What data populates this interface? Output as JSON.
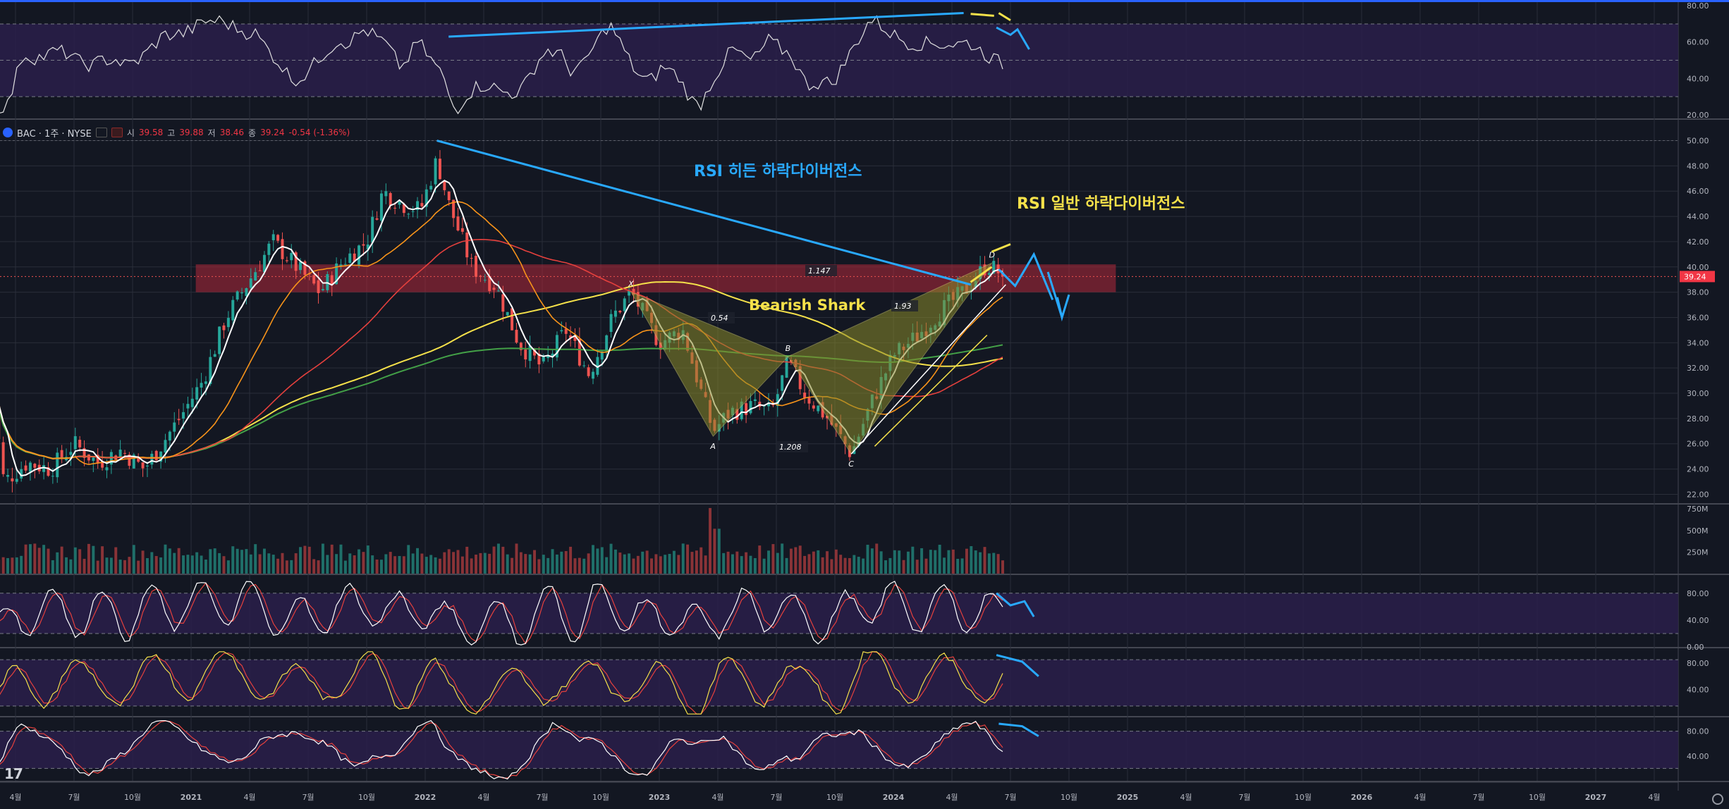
{
  "symbol_bar": {
    "symbol": "BAC · 1주 · NYSE",
    "open_label": "시",
    "open": "39.58",
    "high_label": "고",
    "high": "39.88",
    "low_label": "저",
    "low": "38.46",
    "close_label": "종",
    "close": "39.24",
    "change": "-0.54 (-1.36%)"
  },
  "last_price_tag": "39.24",
  "colors": {
    "background": "#131722",
    "bull": "#26a69a",
    "bear": "#ef5350",
    "rsi_band": "#2a1e4a",
    "ma_white": "#ffffff",
    "ma_orange": "#f7931a",
    "ma_red": "#e5403d",
    "ma_yellow": "#f5e14a",
    "ma_green": "#43a047",
    "annotation_blue": "#29a9ff",
    "annotation_yellow": "#f5e14a"
  },
  "chart_data": {
    "type": "candlestick",
    "interval": "weekly",
    "x_axis_labels": [
      "4월",
      "7월",
      "10월",
      "2021",
      "4월",
      "7월",
      "10월",
      "2022",
      "4월",
      "7월",
      "10월",
      "2023",
      "4월",
      "7월",
      "10월",
      "2024",
      "4월",
      "7월",
      "10월",
      "2025",
      "4월",
      "7월",
      "10월",
      "2026",
      "4월",
      "7월",
      "10월",
      "2027",
      "4월"
    ],
    "y_axis_ticks": [
      "50.00",
      "48.00",
      "46.00",
      "44.00",
      "42.00",
      "40.00",
      "38.00",
      "36.00",
      "34.00",
      "32.00",
      "30.00",
      "28.00",
      "26.00",
      "24.00",
      "22.00"
    ],
    "y_range": [
      21.3,
      51.2
    ],
    "price_path": [
      [
        2020.14,
        32.0
      ],
      [
        2020.2,
        23.0
      ],
      [
        2020.3,
        24.5
      ],
      [
        2020.4,
        24.0
      ],
      [
        2020.5,
        26.0
      ],
      [
        2020.6,
        24.5
      ],
      [
        2020.7,
        25.5
      ],
      [
        2020.8,
        24.0
      ],
      [
        2020.95,
        28.0
      ],
      [
        2021.05,
        31.0
      ],
      [
        2021.15,
        36.0
      ],
      [
        2021.25,
        39.0
      ],
      [
        2021.35,
        42.0
      ],
      [
        2021.45,
        40.0
      ],
      [
        2021.55,
        38.0
      ],
      [
        2021.65,
        40.5
      ],
      [
        2021.75,
        42.0
      ],
      [
        2021.82,
        46.0
      ],
      [
        2021.9,
        45.0
      ],
      [
        2021.98,
        44.5
      ],
      [
        2022.05,
        48.5
      ],
      [
        2022.1,
        45.0
      ],
      [
        2022.2,
        40.0
      ],
      [
        2022.3,
        38.5
      ],
      [
        2022.4,
        34.0
      ],
      [
        2022.5,
        32.0
      ],
      [
        2022.6,
        35.0
      ],
      [
        2022.7,
        31.5
      ],
      [
        2022.8,
        36.0
      ],
      [
        2022.88,
        38.0
      ],
      [
        2023.0,
        34.0
      ],
      [
        2023.1,
        35.0
      ],
      [
        2023.18,
        30.0
      ],
      [
        2023.23,
        27.0
      ],
      [
        2023.3,
        28.5
      ],
      [
        2023.4,
        29.0
      ],
      [
        2023.48,
        28.5
      ],
      [
        2023.55,
        32.5
      ],
      [
        2023.62,
        30.0
      ],
      [
        2023.72,
        28.0
      ],
      [
        2023.82,
        25.2
      ],
      [
        2023.9,
        29.0
      ],
      [
        2024.0,
        33.0
      ],
      [
        2024.1,
        34.5
      ],
      [
        2024.2,
        36.5
      ],
      [
        2024.3,
        38.0
      ],
      [
        2024.4,
        40.2
      ],
      [
        2024.48,
        39.24
      ]
    ],
    "volume_axis_ticks": [
      "750M",
      "500M",
      "250M"
    ],
    "rsi_axis_ticks": [
      "80.00",
      "60.00",
      "40.00",
      "20.00"
    ],
    "stoch_axis_ticks": [
      "80.00",
      "40.00",
      "0.00"
    ],
    "osc2_axis_ticks": [
      "80.00",
      "40.00"
    ],
    "osc3_axis_ticks": [
      "80.00",
      "40.00"
    ],
    "harmonic_pattern": {
      "name": "Bearish Shark",
      "points": {
        "X": [
          2022.88,
          38.0
        ],
        "A": [
          2023.23,
          26.6
        ],
        "B": [
          2023.55,
          32.9
        ],
        "C": [
          2023.82,
          25.2
        ],
        "D": [
          2024.42,
          40.3
        ]
      },
      "ratios": [
        "0.54",
        "1.208",
        "1.93",
        "1.147"
      ]
    },
    "annotations": [
      "RSI 히든 하락다이버전스",
      "RSI 일반 하락다이버전스"
    ]
  }
}
